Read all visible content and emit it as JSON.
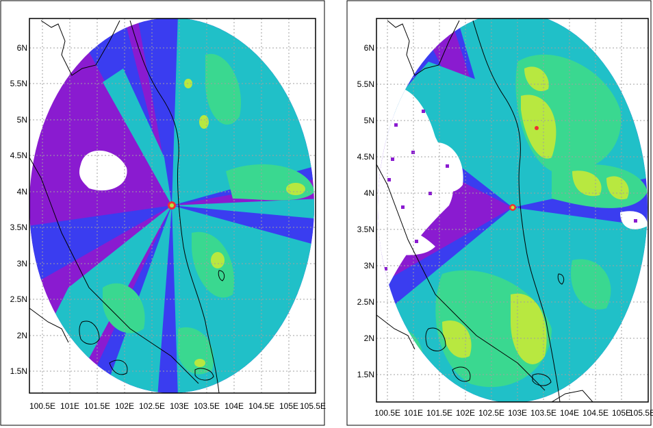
{
  "maps": [
    {
      "id": "left",
      "lat_labels": [
        "6N",
        "5.5N",
        "5N",
        "4.5N",
        "4N",
        "3.5N",
        "3N",
        "2.5N",
        "2N",
        "1.5N"
      ],
      "lon_labels": [
        "100.5E",
        "101E",
        "101.5E",
        "102E",
        "102.5E",
        "103E",
        "103.5E",
        "104E",
        "104.5E",
        "105E",
        "105.5E"
      ]
    },
    {
      "id": "right",
      "lat_labels": [
        "6N",
        "5.5N",
        "5N",
        "4.5N",
        "4N",
        "3.5N",
        "3N",
        "2.5N",
        "2N",
        "1.5N"
      ],
      "lon_labels": [
        "100.5E",
        "101E",
        "101.5E",
        "102E",
        "102.5E",
        "103E",
        "103.5E",
        "104E",
        "104.5E",
        "105E",
        "105.5E"
      ]
    }
  ],
  "palette": {
    "purple": "#8a1bd0",
    "blue": "#3a3df0",
    "cyan": "#20c0c8",
    "green": "#3ad890",
    "yellow_green": "#b8e840",
    "red": "#f03030",
    "coast": "#000000",
    "grid": "#a0a0a0"
  }
}
